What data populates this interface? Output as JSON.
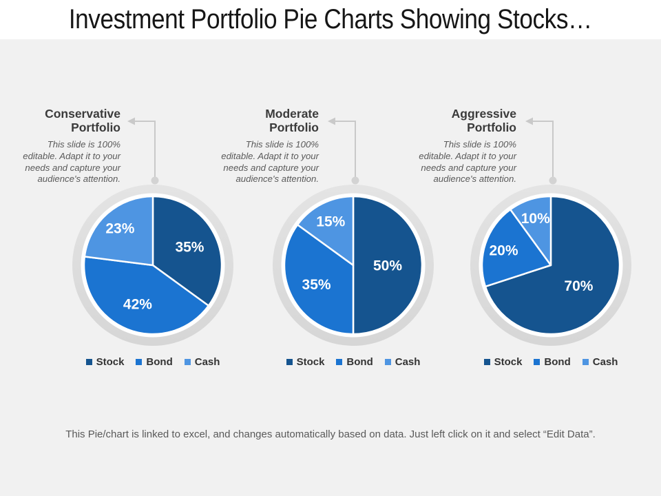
{
  "title": "Investment Portfolio Pie Charts Showing Stocks…",
  "portfolios": [
    {
      "heading": "Conservative\nPortfolio"
    },
    {
      "heading": "Moderate\nPortfolio"
    },
    {
      "heading": "Aggressive\nPortfolio"
    }
  ],
  "portfolio_description": "This slide is 100%\neditable. Adapt it to your\nneeds and capture your\naudience's attention.",
  "legend": [
    "Stock",
    "Bond",
    "Cash"
  ],
  "slice_colors": [
    "#15548f",
    "#1b74d1",
    "#4e95e2"
  ],
  "accent_colors": {
    "stock": "#15548f",
    "bond": "#1b74d1",
    "cash": "#4e95e2",
    "ring": "#dcdcdc",
    "connector": "#c9c9c9"
  },
  "footer": "This Pie/chart is linked to excel, and changes automatically based on data. Just left click on it and select “Edit Data”.",
  "chart_data": [
    {
      "type": "pie",
      "title": "Conservative Portfolio",
      "labels": [
        "Stock",
        "Bond",
        "Cash"
      ],
      "values": [
        35,
        42,
        23
      ],
      "unit": "%",
      "start_angle_deg": 0,
      "direction": "clockwise",
      "legend_position": "bottom"
    },
    {
      "type": "pie",
      "title": "Moderate Portfolio",
      "labels": [
        "Stock",
        "Bond",
        "Cash"
      ],
      "values": [
        50,
        35,
        15
      ],
      "unit": "%",
      "start_angle_deg": 0,
      "direction": "clockwise",
      "legend_position": "bottom"
    },
    {
      "type": "pie",
      "title": "Aggressive Portfolio",
      "labels": [
        "Stock",
        "Bond",
        "Cash"
      ],
      "values": [
        70,
        20,
        10
      ],
      "unit": "%",
      "start_angle_deg": 0,
      "direction": "clockwise",
      "legend_position": "bottom"
    }
  ]
}
